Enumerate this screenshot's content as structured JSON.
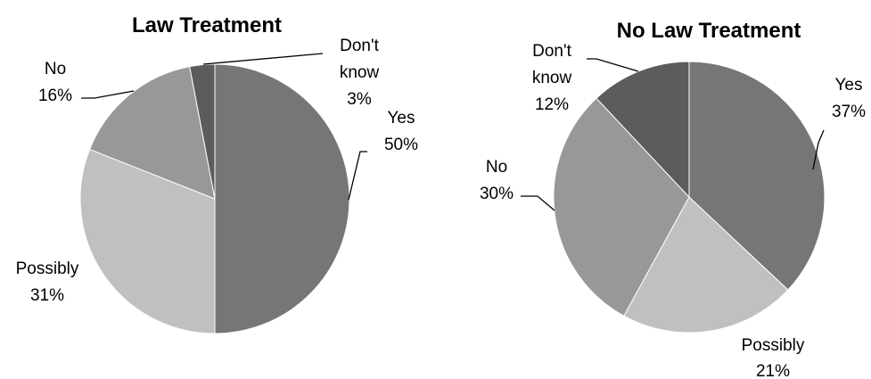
{
  "chart_data": [
    {
      "type": "pie",
      "title": "Law Treatment",
      "slices": [
        {
          "label": "Yes",
          "value": 50,
          "percent_label": "50%",
          "color": "#767676"
        },
        {
          "label": "Possibly",
          "value": 31,
          "percent_label": "31%",
          "color": "#c0c0c0"
        },
        {
          "label": "No",
          "value": 16,
          "percent_label": "16%",
          "color": "#989898"
        },
        {
          "label": "Don't know",
          "value": 3,
          "percent_label": "3%",
          "color": "#5c5c5c"
        }
      ]
    },
    {
      "type": "pie",
      "title": "No Law Treatment",
      "slices": [
        {
          "label": "Yes",
          "value": 37,
          "percent_label": "37%",
          "color": "#767676"
        },
        {
          "label": "Possibly",
          "value": 21,
          "percent_label": "21%",
          "color": "#c0c0c0"
        },
        {
          "label": "No",
          "value": 30,
          "percent_label": "30%",
          "color": "#989898"
        },
        {
          "label": "Don't know",
          "value": 12,
          "percent_label": "12%",
          "color": "#5c5c5c"
        }
      ]
    }
  ]
}
